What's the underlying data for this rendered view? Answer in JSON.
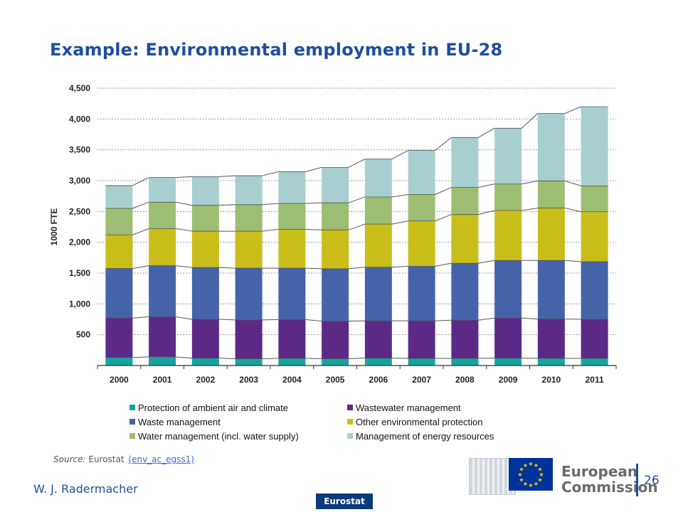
{
  "slide": {
    "title": "Example: Environmental employment in EU-28",
    "source_label": "Source:",
    "source_text": "Eurostat",
    "source_link": "(env_ac_egss1)",
    "author": "W. J. Radermacher",
    "footer_tag": "Eurostat",
    "logo_text_line1": "European",
    "logo_text_line2": "Commission",
    "page_number": "26",
    "flag_icon": "eu-flag-icon"
  },
  "chart_data": {
    "type": "bar",
    "stacked": true,
    "title": "",
    "xlabel": "",
    "ylabel": "1000 FTE",
    "ylim": [
      0,
      4500
    ],
    "yticks": [
      500,
      1000,
      1500,
      2000,
      2500,
      3000,
      3500,
      4000,
      4500
    ],
    "ytick_labels": [
      "500",
      "1,000",
      "1,500",
      "2,000",
      "2,500",
      "3,000",
      "3,500",
      "4,000",
      "4,500"
    ],
    "grid": true,
    "legend_position": "bottom",
    "categories": [
      "2000",
      "2001",
      "2002",
      "2003",
      "2004",
      "2005",
      "2006",
      "2007",
      "2008",
      "2009",
      "2010",
      "2011"
    ],
    "series": [
      {
        "name": "Protection of ambient air and climate",
        "color": "#16a3a0",
        "values": [
          130,
          140,
          120,
          110,
          115,
          110,
          120,
          115,
          115,
          120,
          115,
          115
        ]
      },
      {
        "name": "Wastewater management",
        "color": "#5c2a86",
        "values": [
          640,
          650,
          630,
          630,
          630,
          610,
          605,
          610,
          620,
          650,
          640,
          635
        ]
      },
      {
        "name": "Waste management",
        "color": "#4563a8",
        "values": [
          805,
          830,
          840,
          840,
          835,
          850,
          870,
          885,
          925,
          935,
          950,
          935
        ]
      },
      {
        "name": "Other environmental protection",
        "color": "#c9bd1a",
        "values": [
          545,
          600,
          590,
          600,
          630,
          630,
          700,
          735,
          790,
          810,
          850,
          810
        ]
      },
      {
        "name": "Water management (incl. water supply)",
        "color": "#9dbd72",
        "values": [
          430,
          430,
          420,
          430,
          420,
          440,
          440,
          430,
          440,
          430,
          440,
          420
        ]
      },
      {
        "name": "Management of energy resources",
        "color": "#a7cfcf",
        "values": [
          370,
          400,
          465,
          470,
          515,
          575,
          615,
          715,
          810,
          905,
          1095,
          1285
        ]
      }
    ],
    "legend_order": [
      0,
      1,
      2,
      3,
      4,
      5
    ]
  }
}
